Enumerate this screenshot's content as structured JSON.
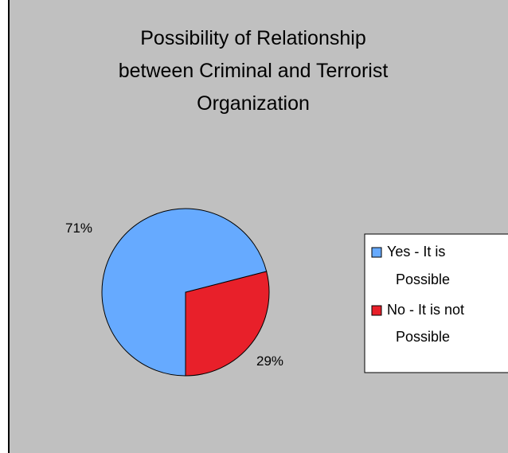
{
  "chart_data": {
    "type": "pie",
    "title_lines": [
      "Possibility of Relationship",
      "between Criminal and Terrorist",
      "Organization"
    ],
    "slices": [
      {
        "label_lines": [
          "Yes - It is",
          "Possible"
        ],
        "value": 71,
        "data_label": "71%",
        "color": "#66aaff"
      },
      {
        "label_lines": [
          "No - It is not",
          "Possible"
        ],
        "value": 29,
        "data_label": "29%",
        "color": "#e8202a"
      }
    ],
    "legend_position": "right"
  },
  "colors": {
    "background": "#c0c0c0",
    "outline": "#000000"
  }
}
